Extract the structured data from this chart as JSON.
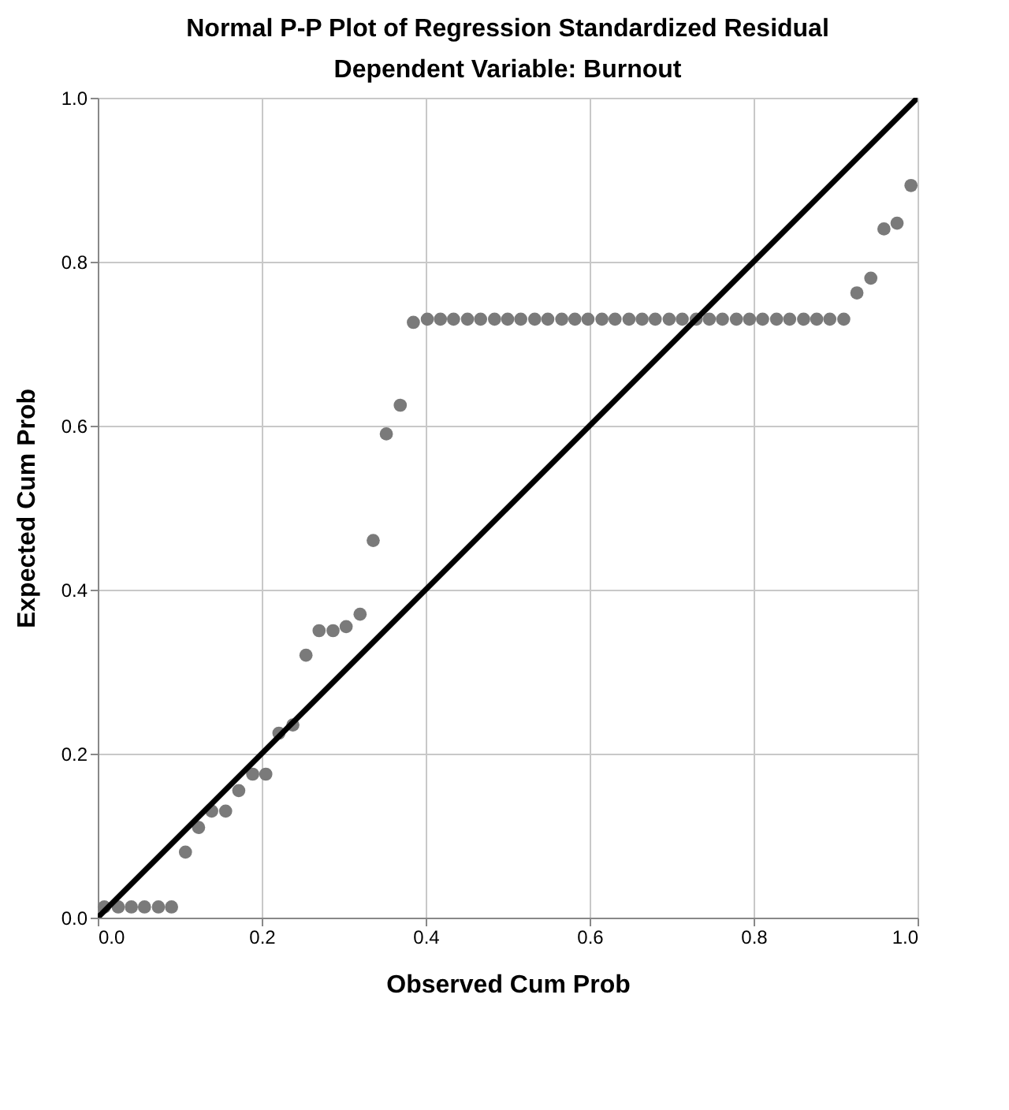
{
  "chart_data": {
    "type": "scatter",
    "title": "Normal P-P Plot of Regression Standardized Residual",
    "subtitle": "Dependent Variable: Burnout",
    "xlabel": "Observed Cum Prob",
    "ylabel": "Expected Cum Prob",
    "xlim": [
      0,
      1
    ],
    "ylim": [
      0,
      1
    ],
    "xticks": [
      {
        "value": 0,
        "label": "0.0"
      },
      0.2,
      0.4,
      0.6,
      0.8,
      {
        "value": 1,
        "label": "1.0"
      }
    ],
    "yticks": [
      {
        "value": 0,
        "label": "0.0"
      },
      0.2,
      0.4,
      0.6,
      0.8,
      {
        "value": 1,
        "label": "1.0"
      }
    ],
    "grid": true,
    "marker": "circle",
    "series": [
      {
        "color": "#7a7a7a",
        "x": [
          0.008,
          0.025,
          0.041,
          0.057,
          0.074,
          0.09,
          0.107,
          0.123,
          0.139,
          0.156,
          0.172,
          0.189,
          0.205,
          0.221,
          0.238,
          0.254,
          0.27,
          0.287,
          0.303,
          0.32,
          0.336,
          0.352,
          0.369,
          0.385,
          0.402,
          0.418,
          0.434,
          0.451,
          0.467,
          0.484,
          0.5,
          0.516,
          0.533,
          0.549,
          0.566,
          0.582,
          0.598,
          0.615,
          0.631,
          0.648,
          0.664,
          0.68,
          0.697,
          0.713,
          0.73,
          0.746,
          0.762,
          0.779,
          0.795,
          0.811,
          0.828,
          0.844,
          0.861,
          0.877,
          0.893,
          0.91,
          0.926,
          0.943,
          0.959,
          0.975,
          0.992
        ],
        "values": [
          0.013,
          0.013,
          0.013,
          0.013,
          0.013,
          0.013,
          0.08,
          0.11,
          0.13,
          0.13,
          0.155,
          0.175,
          0.175,
          0.225,
          0.235,
          0.32,
          0.35,
          0.35,
          0.355,
          0.37,
          0.46,
          0.59,
          0.625,
          0.726,
          0.73,
          0.73,
          0.73,
          0.73,
          0.73,
          0.73,
          0.73,
          0.73,
          0.73,
          0.73,
          0.73,
          0.73,
          0.73,
          0.73,
          0.73,
          0.73,
          0.73,
          0.73,
          0.73,
          0.73,
          0.73,
          0.73,
          0.73,
          0.73,
          0.73,
          0.73,
          0.73,
          0.73,
          0.73,
          0.73,
          0.73,
          0.73,
          0.762,
          0.78,
          0.84,
          0.847,
          0.893
        ]
      },
      {
        "type": "line",
        "marker": "none",
        "color": "#000000",
        "x": [
          0,
          1
        ],
        "values": [
          0,
          1
        ]
      }
    ]
  }
}
